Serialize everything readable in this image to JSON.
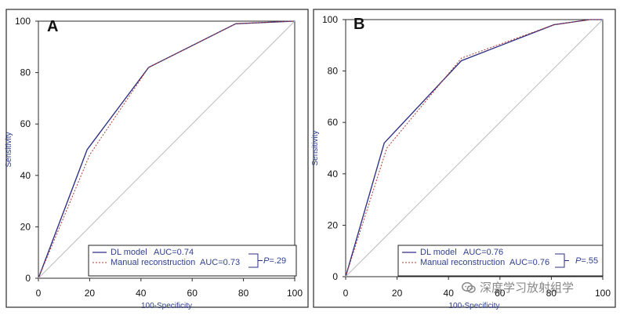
{
  "colors": {
    "frame": "#2b2b2b",
    "axis_text": "#111111",
    "axis_title": "#2f3f8f",
    "dl_model": "#2e2e86",
    "manual": "#b23b32",
    "reference": "#bdbdbd",
    "legend_border": "#222222",
    "watermark": "#6e6e6e"
  },
  "watermark": {
    "text": "深度学习放射组学",
    "icon": "wechat-icon"
  },
  "chart_data": [
    {
      "type": "line",
      "panel_label": "A",
      "xlabel": "100-Specificity",
      "ylabel": "Sensitivity",
      "xlim": [
        0,
        100
      ],
      "ylim": [
        0,
        100
      ],
      "x_ticks": [
        "0",
        "20",
        "40",
        "60",
        "80",
        "100"
      ],
      "y_ticks": [
        "0",
        "20",
        "40",
        "60",
        "80",
        "100"
      ],
      "grid": false,
      "legend_location": "bottom-right",
      "series": [
        {
          "name": "DL model",
          "auc_label": "AUC=0.74",
          "style": "solid",
          "points": [
            [
              0,
              0
            ],
            [
              19,
              50
            ],
            [
              43,
              82
            ],
            [
              77,
              99
            ],
            [
              100,
              100
            ]
          ]
        },
        {
          "name": "Manual reconstruction",
          "auc_label": "AUC=0.73",
          "style": "dashed",
          "points": [
            [
              0,
              0
            ],
            [
              20,
              48
            ],
            [
              43,
              82
            ],
            [
              77,
              99
            ],
            [
              100,
              100
            ]
          ]
        },
        {
          "name": "reference",
          "style": "diagonal",
          "points": [
            [
              0,
              0
            ],
            [
              100,
              100
            ]
          ]
        }
      ],
      "p_value": {
        "italic": "P",
        "text": "=.29"
      }
    },
    {
      "type": "line",
      "panel_label": "B",
      "xlabel": "100-Specificity",
      "ylabel": "Sensitivity",
      "xlim": [
        0,
        100
      ],
      "ylim": [
        0,
        100
      ],
      "x_ticks": [
        "0",
        "20",
        "40",
        "60",
        "80",
        "100"
      ],
      "y_ticks": [
        "0",
        "20",
        "40",
        "60",
        "80",
        "100"
      ],
      "grid": false,
      "legend_location": "bottom-right",
      "series": [
        {
          "name": "DL model",
          "auc_label": "AUC=0.76",
          "style": "solid",
          "points": [
            [
              0,
              0
            ],
            [
              15,
              52
            ],
            [
              45,
              84
            ],
            [
              81,
              98
            ],
            [
              95,
              100
            ],
            [
              100,
              100
            ]
          ]
        },
        {
          "name": "Manual reconstruction",
          "auc_label": "AUC=0.76",
          "style": "dashed",
          "points": [
            [
              0,
              0
            ],
            [
              16,
              50
            ],
            [
              45,
              85
            ],
            [
              81,
              98
            ],
            [
              95,
              100
            ],
            [
              100,
              100
            ]
          ]
        },
        {
          "name": "reference",
          "style": "diagonal",
          "points": [
            [
              0,
              0
            ],
            [
              100,
              100
            ]
          ]
        }
      ],
      "p_value": {
        "italic": "P",
        "text": "=.55"
      }
    }
  ]
}
